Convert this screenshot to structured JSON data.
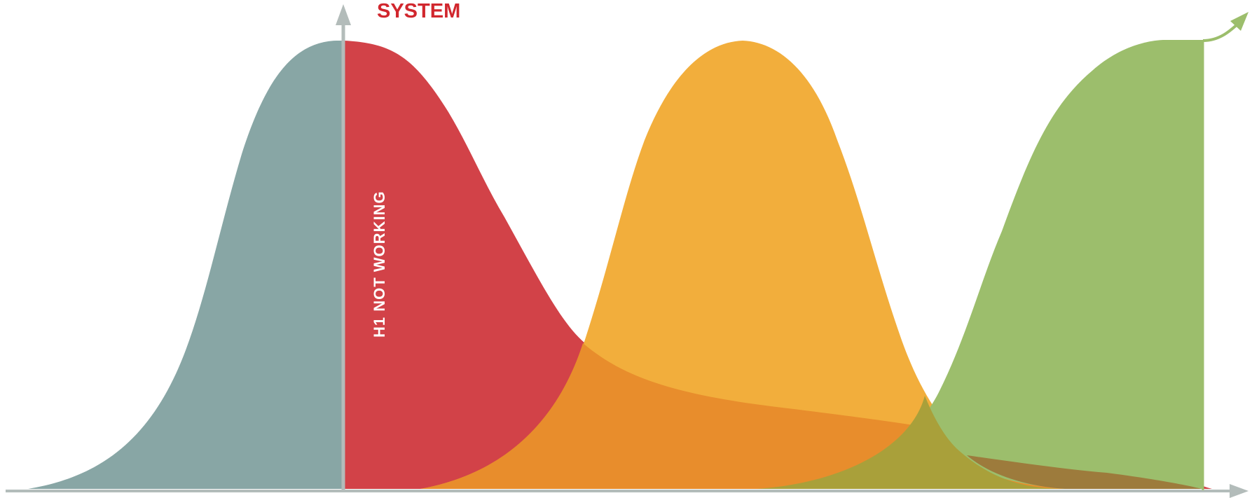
{
  "diagram": {
    "top_label": "SYSTEM",
    "vertical_label": "H1 NOT WORKING"
  },
  "colors": {
    "background": "#ffffff",
    "axis": "#b3bcba",
    "curve_teal": "#88a6a5",
    "curve_red": "#d24248",
    "curve_orange": "#f2ae3c",
    "curve_green": "#9cbe6c",
    "overlap_red_orange": "#e88d2c",
    "overlap_orange_green": "#a9a03a",
    "overlap_red_orange_green": "#9d7b3c",
    "top_label": "#d1272e",
    "vertical_label": "#ffffff"
  }
}
